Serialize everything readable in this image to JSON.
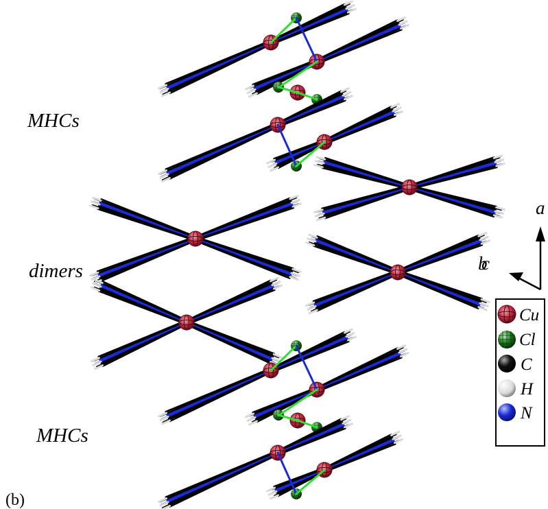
{
  "labels": {
    "mhcs_top": "MHCs",
    "dimers": "dimers",
    "mhcs_bottom": "MHCs",
    "panel": "(b)"
  },
  "axes": {
    "a": "a",
    "b": "b",
    "c": "c"
  },
  "legend": [
    {
      "symbol": "Cu",
      "color": "#c0233a",
      "style": "cu-ellipsoid"
    },
    {
      "symbol": "Cl",
      "color": "#1f7a1f",
      "style": "cl-ball"
    },
    {
      "symbol": "C",
      "color": "#000000",
      "style": "c-ball"
    },
    {
      "symbol": "H",
      "color": "#d9d9d9",
      "style": "h-ball"
    },
    {
      "symbol": "N",
      "color": "#1a2bd6",
      "style": "n-ball"
    }
  ],
  "colors": {
    "carbon": "#000000",
    "nitrogen": "#1a2bd6",
    "hydrogen": "#d9d9d9",
    "copper": "#c0233a",
    "chlorine": "#1f7a1f",
    "bond_cl": "#33dd33"
  }
}
